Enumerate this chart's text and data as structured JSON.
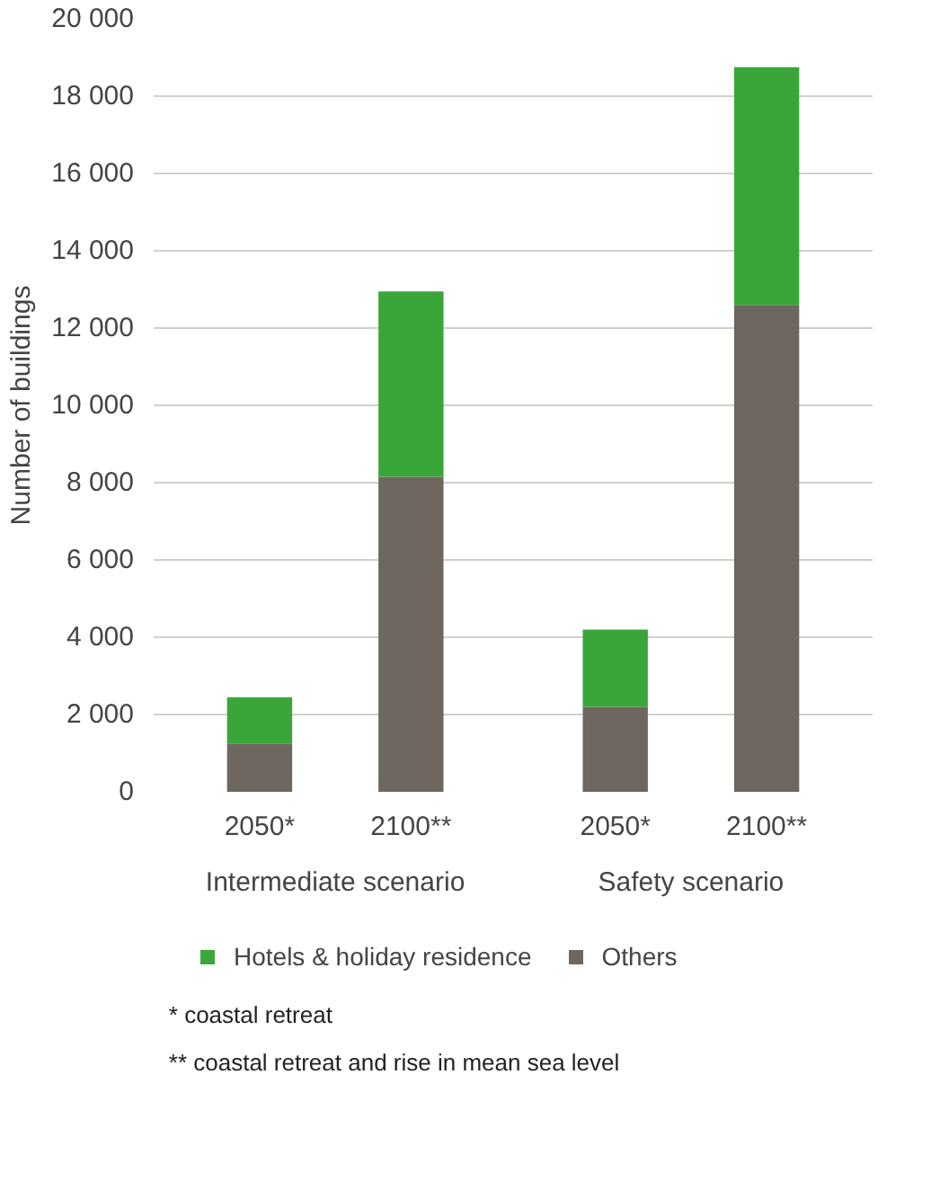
{
  "chart_data": {
    "type": "bar",
    "stacked": true,
    "ylabel": "Number of buildings",
    "categories": [
      "2050*",
      "2100**",
      "2050*",
      "2100**"
    ],
    "series": [
      {
        "name": "Others",
        "color": "#6e6760",
        "values": [
          1250,
          8150,
          2200,
          12600
        ]
      },
      {
        "name": "Hotels & holiday residence",
        "color": "#3aa63a",
        "values": [
          1200,
          4800,
          2000,
          6150
        ]
      }
    ],
    "ylim": [
      0,
      20000
    ],
    "yticks": [
      {
        "value": 0,
        "label": "0"
      },
      {
        "value": 2000,
        "label": "2 000"
      },
      {
        "value": 4000,
        "label": "4 000"
      },
      {
        "value": 6000,
        "label": "6 000"
      },
      {
        "value": 8000,
        "label": "8 000"
      },
      {
        "value": 10000,
        "label": "10 000"
      },
      {
        "value": 12000,
        "label": "12 000"
      },
      {
        "value": 14000,
        "label": "14 000"
      },
      {
        "value": 16000,
        "label": "16 000"
      },
      {
        "value": 18000,
        "label": "18 000"
      },
      {
        "value": 20000,
        "label": "20 000"
      }
    ],
    "grid": "y",
    "legend": "bottom",
    "annotations": [
      "Intermediate scenario",
      "Safety scenario",
      "* coastal retreat",
      "** coastal retreat and rise in mean sea level"
    ]
  }
}
